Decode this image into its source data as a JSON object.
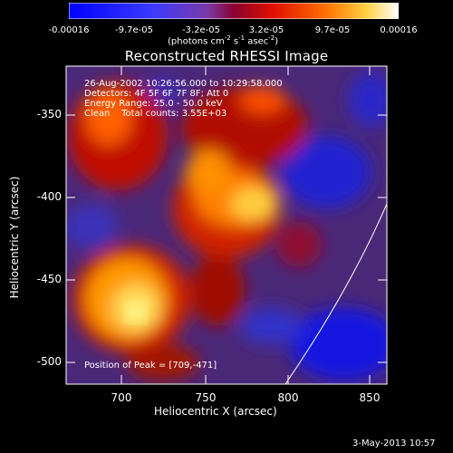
{
  "colorbar": {
    "ticks": [
      "-0.00016",
      "-9.7e-05",
      "-3.2e-05",
      "3.2e-05",
      "9.7e-05",
      "0.00016"
    ],
    "units_text": "(photons cm",
    "units_sup1": "-2",
    "units_mid": " s",
    "units_sup2": "-1",
    "units_end": " asec",
    "units_sup3": "-2",
    "units_close": ")"
  },
  "plot": {
    "title": "Reconstructed RHESSI Image",
    "xlabel": "Heliocentric X (arcsec)",
    "ylabel": "Heliocentric Y (arcsec)",
    "xticks": [
      "700",
      "750",
      "800",
      "850"
    ],
    "yticks": [
      "-350",
      "-400",
      "-450",
      "-500"
    ],
    "annotations": [
      "26-Aug-2002 10:26:56.000 to 10:29:58.000",
      "Detectors: 4F 5F 6F 7F 8F; Att 0",
      "Energy Range: 25.0 - 50.0 keV",
      "Clean    Total counts: 3.55E+03"
    ],
    "peak": "Position of Peak = [709,-471]"
  },
  "footer": {
    "timestamp": "3-May-2013 10:57"
  },
  "colors": {
    "negative": "#1a1aff",
    "mid": "#5a2a8a",
    "positive": "#ff2000",
    "peak": "#ffff80"
  }
}
